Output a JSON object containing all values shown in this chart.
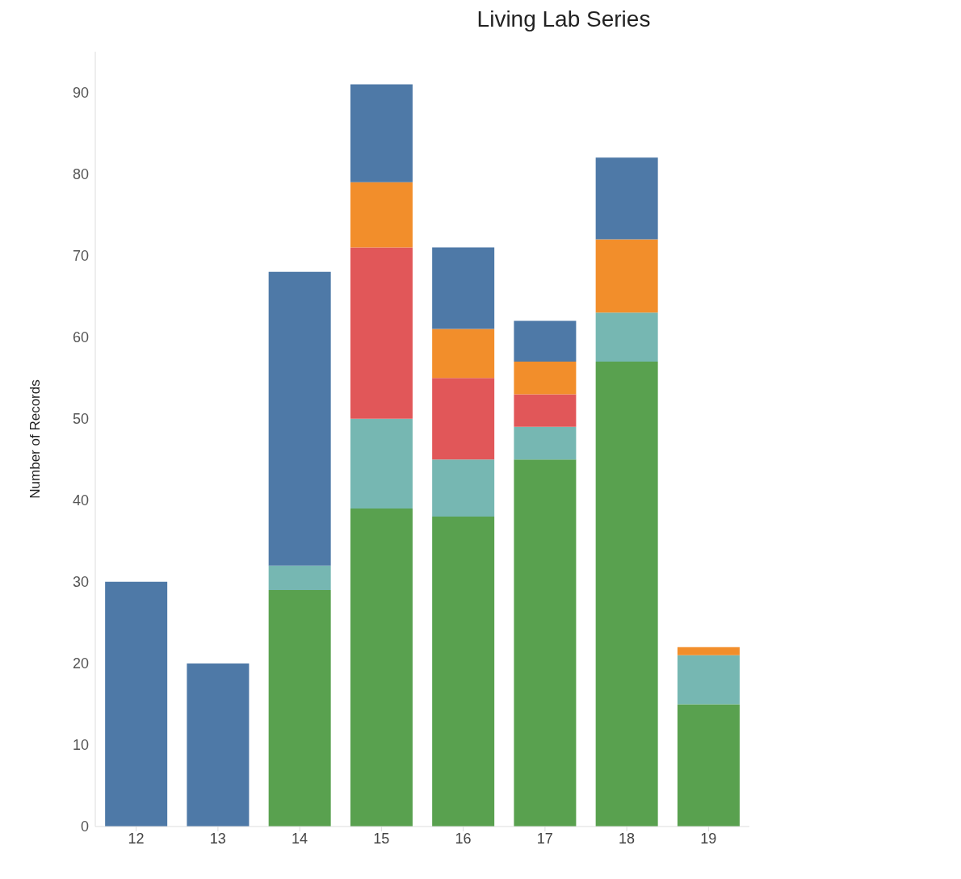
{
  "chart_data": {
    "type": "bar",
    "title": "Living Lab Series",
    "ylabel": "Number of Records",
    "stacked": true,
    "categories": [
      "12",
      "13",
      "14",
      "15",
      "16",
      "17",
      "18",
      "19"
    ],
    "series": [
      {
        "color": "#59a14f",
        "values": [
          null,
          null,
          29,
          39,
          38,
          45,
          57,
          15
        ]
      },
      {
        "color": "#76b7b2",
        "values": [
          null,
          null,
          3,
          11,
          7,
          4,
          6,
          6
        ]
      },
      {
        "color": "#e15759",
        "values": [
          null,
          null,
          null,
          21,
          10,
          4,
          null,
          null
        ]
      },
      {
        "color": "#f28e2b",
        "values": [
          null,
          null,
          null,
          8,
          6,
          4,
          9,
          1
        ]
      },
      {
        "color": "#4e79a7",
        "values": [
          30,
          20,
          36,
          12,
          10,
          5,
          10,
          null
        ]
      }
    ],
    "ylim": [
      0,
      95
    ],
    "yticks": [
      0,
      10,
      20,
      30,
      40,
      50,
      60,
      70,
      80,
      90
    ],
    "grid": false,
    "legend": false
  }
}
